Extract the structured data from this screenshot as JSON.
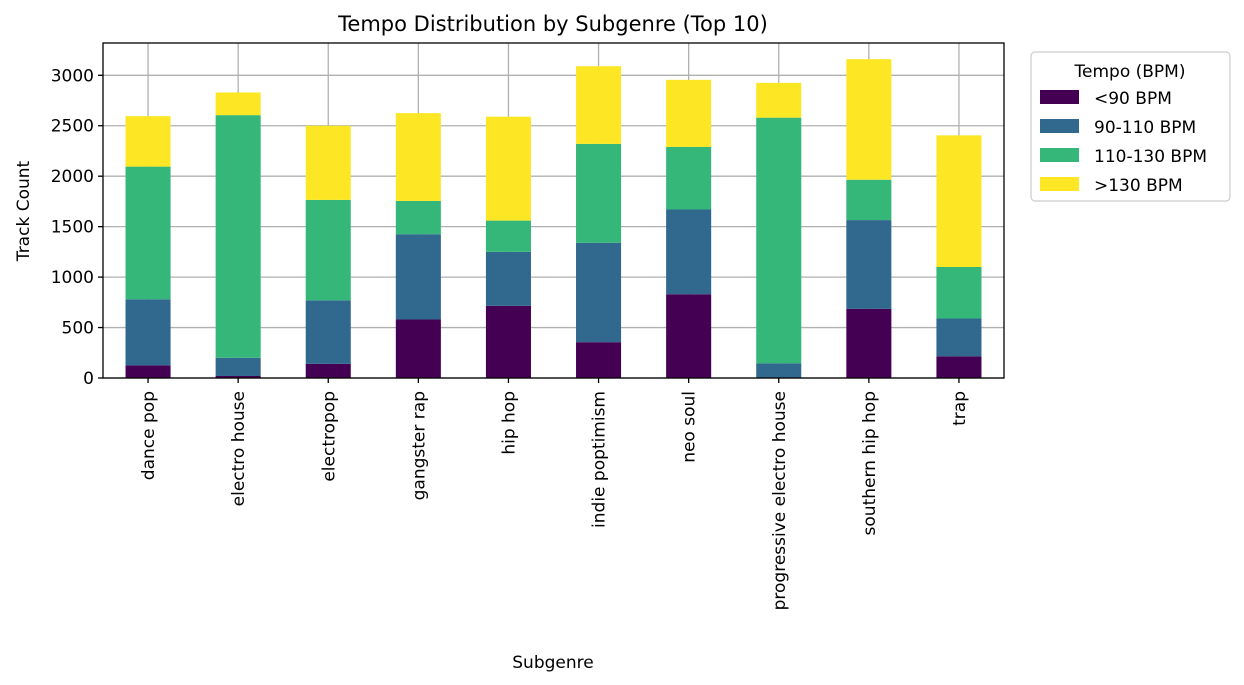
{
  "chart_data": {
    "type": "bar",
    "stacked": true,
    "title": "Tempo Distribution by Subgenre (Top 10)",
    "xlabel": "Subgenre",
    "ylabel": "Track Count",
    "ylim": [
      0,
      3320
    ],
    "yticks": [
      0,
      500,
      1000,
      1500,
      2000,
      2500,
      3000
    ],
    "grid": true,
    "legend": {
      "title": "Tempo (BPM)",
      "placement": "outside-top-right"
    },
    "categories": [
      "dance pop",
      "electro house",
      "electropop",
      "gangster rap",
      "hip hop",
      "indie poptimism",
      "neo soul",
      "progressive electro house",
      "southern hip hop",
      "trap"
    ],
    "series": [
      {
        "name": "<90 BPM",
        "color": "#440154",
        "values": [
          125,
          20,
          140,
          580,
          715,
          355,
          830,
          5,
          685,
          215
        ]
      },
      {
        "name": "90-110 BPM",
        "color": "#31688e",
        "values": [
          655,
          180,
          630,
          845,
          535,
          985,
          840,
          140,
          880,
          375
        ]
      },
      {
        "name": "110-130 BPM",
        "color": "#35b779",
        "values": [
          1315,
          2405,
          995,
          330,
          310,
          980,
          620,
          2435,
          400,
          510
        ]
      },
      {
        "name": ">130 BPM",
        "color": "#fde725",
        "values": [
          500,
          225,
          735,
          870,
          1030,
          770,
          665,
          345,
          1195,
          1305
        ]
      }
    ]
  }
}
